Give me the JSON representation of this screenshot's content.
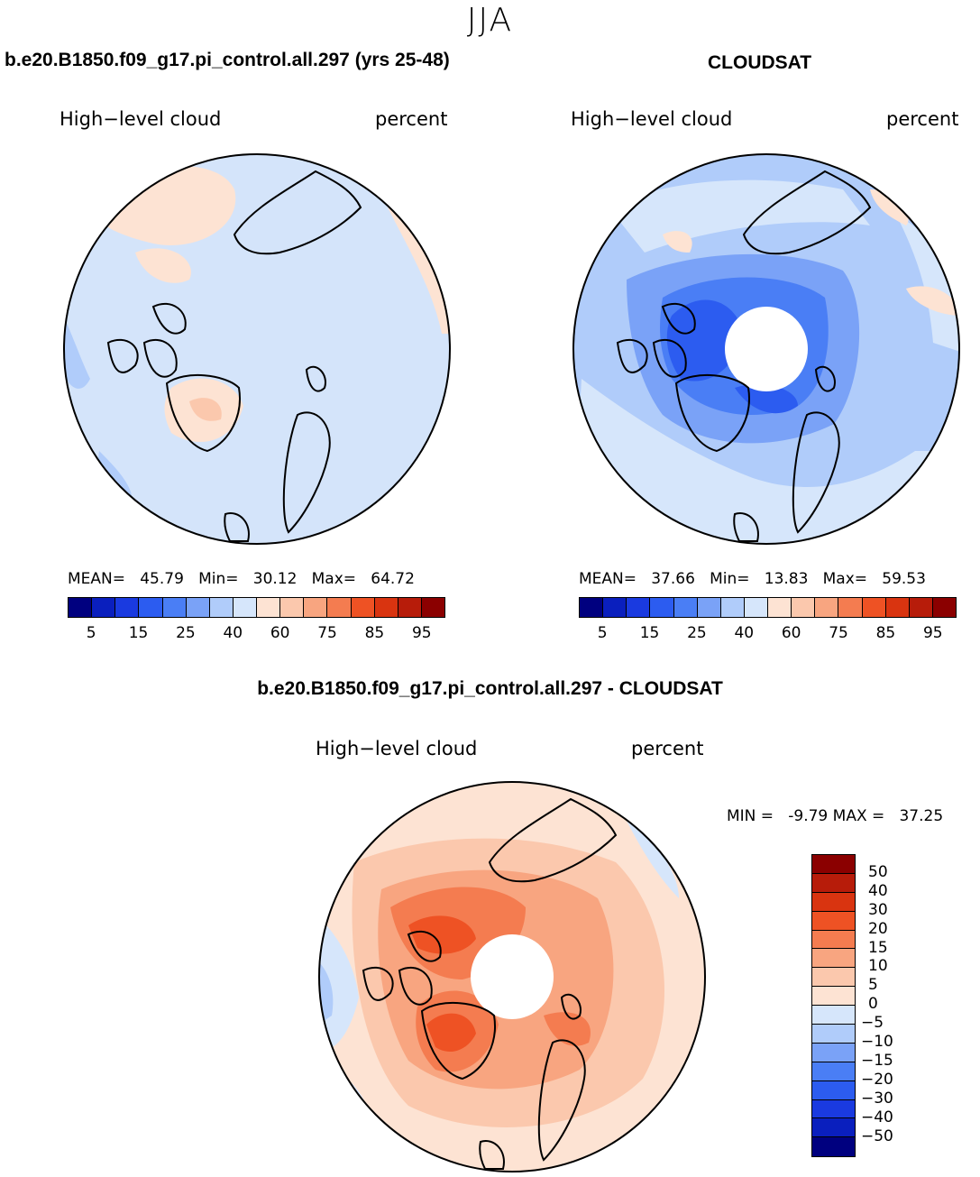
{
  "figure": {
    "season": "JJA"
  },
  "panels": [
    {
      "title": "b.e20.B1850.f09_g17.pi_control.all.297 (yrs 25-48)",
      "variable": "High−level cloud",
      "units": "percent",
      "stats": {
        "mean_label": "MEAN=",
        "mean": "45.79",
        "min_label": "Min=",
        "min": "30.12",
        "max_label": "Max=",
        "max": "64.72"
      }
    },
    {
      "title": "CLOUDSAT",
      "variable": "High−level cloud",
      "units": "percent",
      "stats": {
        "mean_label": "MEAN=",
        "mean": "37.66",
        "min_label": "Min=",
        "min": "13.83",
        "max_label": "Max=",
        "max": "59.53"
      }
    },
    {
      "title": "b.e20.B1850.f09_g17.pi_control.all.297 - CLOUDSAT",
      "variable": "High−level cloud",
      "units": "percent",
      "stats": {
        "min_label": "MIN =",
        "min": "-9.79",
        "max_label": "MAX =",
        "max": "37.25"
      }
    }
  ],
  "colorbar_abs": {
    "labels": [
      "5",
      "15",
      "25",
      "40",
      "60",
      "75",
      "85",
      "95"
    ],
    "colors": [
      "#00007f",
      "#0a1fbe",
      "#1a3ae0",
      "#2c5cf0",
      "#4a7ef5",
      "#7aa2f7",
      "#b0ccfa",
      "#d6e6fb",
      "#fde3d3",
      "#fbc8ad",
      "#f8a580",
      "#f47c50",
      "#ee5224",
      "#d93410",
      "#b71c0a",
      "#8b0000"
    ]
  },
  "colorbar_diff": {
    "labels": [
      "50",
      "40",
      "30",
      "20",
      "15",
      "10",
      "5",
      "0",
      "−5",
      "−10",
      "−15",
      "−20",
      "−30",
      "−40",
      "−50"
    ],
    "colors": [
      "#8b0000",
      "#b71c0a",
      "#d93410",
      "#ee5224",
      "#f47c50",
      "#f8a580",
      "#fbc8ad",
      "#fde3d3",
      "#d6e6fb",
      "#b0ccfa",
      "#7aa2f7",
      "#4a7ef5",
      "#2c5cf0",
      "#1a3ae0",
      "#0a1fbe",
      "#00007f"
    ]
  }
}
